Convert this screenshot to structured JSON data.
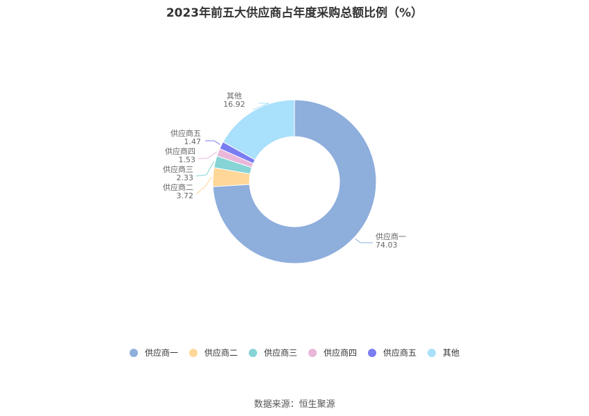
{
  "title": "2023年前五大供应商占年度采购总额比例（%）",
  "source": "数据来源：恒生聚源",
  "legend": [
    {
      "label": "供应商一",
      "color": "#8eaedc"
    },
    {
      "label": "供应商二",
      "color": "#ffd799"
    },
    {
      "label": "供应商三",
      "color": "#86d4d6"
    },
    {
      "label": "供应商四",
      "color": "#e8b7d9"
    },
    {
      "label": "供应商五",
      "color": "#7a7cf2"
    },
    {
      "label": "其他",
      "color": "#a9e0fb"
    }
  ],
  "chart_data": {
    "type": "pie",
    "subtype": "donut",
    "title": "2023年前五大供应商占年度采购总额比例（%）",
    "categories": [
      "供应商一",
      "供应商二",
      "供应商三",
      "供应商四",
      "供应商五",
      "其他"
    ],
    "values": [
      74.03,
      3.72,
      2.33,
      1.53,
      1.47,
      16.92
    ],
    "colors": [
      "#8eaedc",
      "#ffd799",
      "#86d4d6",
      "#e8b7d9",
      "#7a7cf2",
      "#a9e0fb"
    ],
    "legend_position": "bottom",
    "start_angle": "top, clockwise",
    "source": "数据来源：恒生聚源"
  }
}
